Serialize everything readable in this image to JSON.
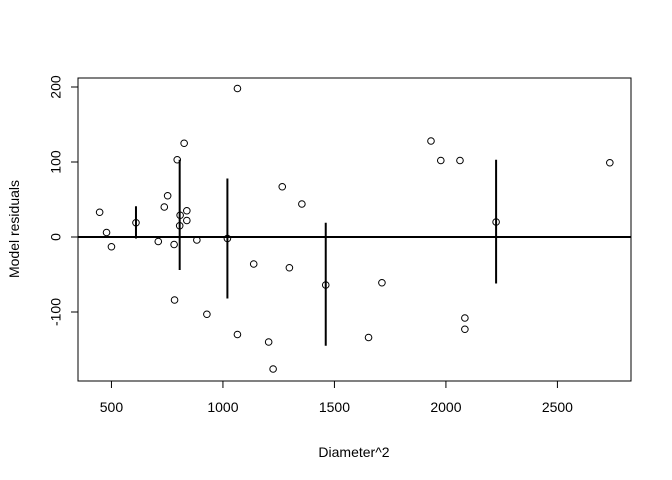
{
  "chart_data": {
    "type": "scatter",
    "title": "",
    "xlabel": "Diameter^2",
    "ylabel": "Model residuals",
    "xlim": [
      350,
      2830
    ],
    "ylim": [
      -192,
      212
    ],
    "x_ticks": [
      500,
      1000,
      1500,
      2000,
      2500
    ],
    "y_ticks": [
      -100,
      0,
      100,
      200
    ],
    "grid": false,
    "legend": "none",
    "reference_line": {
      "y": 0
    },
    "points": [
      {
        "x": 447,
        "y": 33
      },
      {
        "x": 478,
        "y": 6
      },
      {
        "x": 500,
        "y": -13
      },
      {
        "x": 610,
        "y": 19
      },
      {
        "x": 710,
        "y": -6
      },
      {
        "x": 737,
        "y": 40
      },
      {
        "x": 752,
        "y": 55
      },
      {
        "x": 781,
        "y": -10
      },
      {
        "x": 783,
        "y": -84
      },
      {
        "x": 795,
        "y": 103
      },
      {
        "x": 806,
        "y": 15
      },
      {
        "x": 808,
        "y": 29
      },
      {
        "x": 826,
        "y": 125
      },
      {
        "x": 838,
        "y": 35
      },
      {
        "x": 838,
        "y": 22
      },
      {
        "x": 883,
        "y": -4
      },
      {
        "x": 928,
        "y": -103
      },
      {
        "x": 1020,
        "y": -2
      },
      {
        "x": 1065,
        "y": 198
      },
      {
        "x": 1065,
        "y": -130
      },
      {
        "x": 1138,
        "y": -36
      },
      {
        "x": 1205,
        "y": -140
      },
      {
        "x": 1225,
        "y": -176
      },
      {
        "x": 1266,
        "y": 67
      },
      {
        "x": 1298,
        "y": -41
      },
      {
        "x": 1354,
        "y": 44
      },
      {
        "x": 1461,
        "y": -64
      },
      {
        "x": 1653,
        "y": -134
      },
      {
        "x": 1713,
        "y": -61
      },
      {
        "x": 1933,
        "y": 128
      },
      {
        "x": 1977,
        "y": 102
      },
      {
        "x": 2063,
        "y": 102
      },
      {
        "x": 2085,
        "y": -108
      },
      {
        "x": 2085,
        "y": -123
      },
      {
        "x": 2225,
        "y": 20
      },
      {
        "x": 2735,
        "y": 99
      }
    ],
    "vertical_segments": [
      {
        "x": 610,
        "y0": -2,
        "y1": 41
      },
      {
        "x": 806,
        "y0": -44,
        "y1": 103
      },
      {
        "x": 1020,
        "y0": -82,
        "y1": 78
      },
      {
        "x": 1461,
        "y0": -145,
        "y1": 19
      },
      {
        "x": 2225,
        "y0": -62,
        "y1": 103
      }
    ]
  }
}
